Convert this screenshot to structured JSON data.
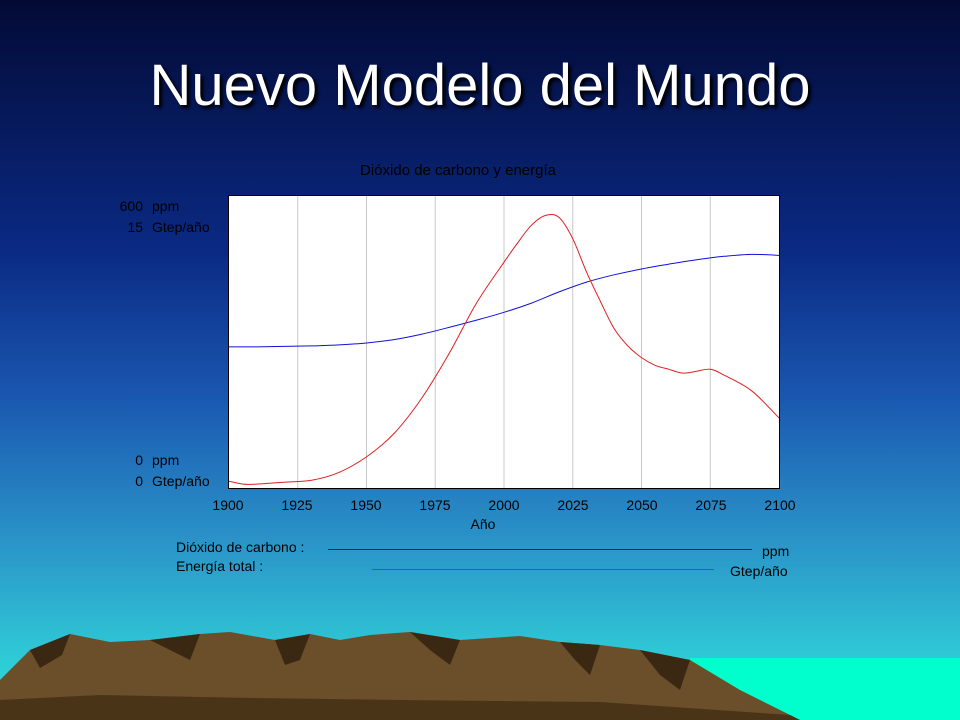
{
  "slide": {
    "title": "Nuevo Modelo del Mundo"
  },
  "colors": {
    "co2_series": "#1010dd",
    "energy_series": "#dd2020",
    "plot_background": "#ffffff"
  },
  "axes_labels": {
    "top_left_value": "600",
    "top_left_unit": "ppm",
    "top_right_value": "15",
    "top_right_unit": "Gtep/año",
    "bottom_left_value": "0",
    "bottom_left_unit": "ppm",
    "bottom_right_value": "0",
    "bottom_right_unit": "Gtep/año"
  },
  "legend": [
    {
      "label": "Dióxido de carbono :",
      "unit": "ppm"
    },
    {
      "label": "Energía total :",
      "unit": "Gtep/año"
    }
  ],
  "chart_data": {
    "type": "line",
    "title": "Dióxido de carbono y energía",
    "xlabel": "Año",
    "x_ticks": [
      "1900",
      "1925",
      "1950",
      "1975",
      "2000",
      "2025",
      "2050",
      "2075",
      "2100"
    ],
    "xlim": [
      1900,
      2100
    ],
    "grid": "vertical",
    "series": [
      {
        "name": "Dióxido de carbono",
        "unit": "ppm",
        "ylim": [
          0,
          600
        ],
        "x": [
          1900,
          1910,
          1920,
          1930,
          1940,
          1950,
          1960,
          1970,
          1980,
          1990,
          2000,
          2010,
          2020,
          2030,
          2040,
          2050,
          2060,
          2070,
          2080,
          2090,
          2100
        ],
        "y": [
          290,
          290,
          291,
          292,
          294,
          298,
          305,
          316,
          330,
          345,
          361,
          380,
          403,
          423,
          438,
          450,
          460,
          469,
          476,
          480,
          478
        ]
      },
      {
        "name": "Energía total",
        "unit": "Gtep/año",
        "ylim": [
          0,
          15
        ],
        "x": [
          1900,
          1905,
          1910,
          1920,
          1930,
          1940,
          1950,
          1960,
          1970,
          1980,
          1990,
          2000,
          2005,
          2010,
          2015,
          2020,
          2025,
          2030,
          2035,
          2040,
          2045,
          2050,
          2055,
          2060,
          2065,
          2070,
          2075,
          2080,
          2090,
          2100
        ],
        "y": [
          0.35,
          0.2,
          0.2,
          0.3,
          0.4,
          0.8,
          1.6,
          2.8,
          4.6,
          6.9,
          9.5,
          11.6,
          12.6,
          13.5,
          14.0,
          13.9,
          12.8,
          11.1,
          9.6,
          8.2,
          7.3,
          6.7,
          6.3,
          6.1,
          5.9,
          6.0,
          6.1,
          5.8,
          5.0,
          3.6
        ]
      }
    ]
  }
}
